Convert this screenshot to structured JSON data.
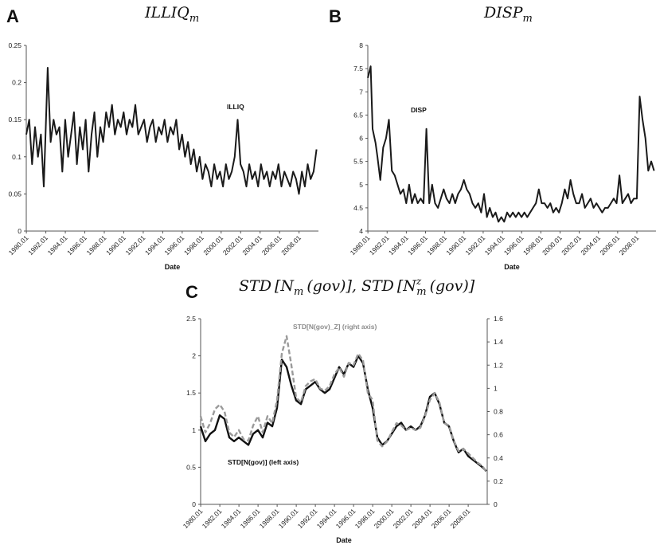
{
  "panels": {
    "a": {
      "letter": "A",
      "title_base": "ILLIQ",
      "title_sub": "m"
    },
    "b": {
      "letter": "B",
      "title_base": "DISP",
      "title_sub": "m"
    },
    "c": {
      "letter": "C",
      "title_part1": "STD",
      "title_bracket1_base": "N",
      "title_bracket1_sub": "m",
      "title_gov": "(gov)",
      "title_part2": "STD",
      "title_bracket2_base": "N",
      "title_bracket2_sub": "m",
      "title_bracket2_sup": "z"
    }
  },
  "chart_data": [
    {
      "id": "illiq",
      "type": "line",
      "xlabel": "Date",
      "ylabel": "",
      "ylim": [
        0,
        0.25
      ],
      "yticks": [
        "0",
        "0.05",
        "0.1",
        "0.15",
        "0.2",
        "0.25"
      ],
      "xrange": [
        1980.0,
        2010.0
      ],
      "xticks": [
        "1980.01",
        "1982.01",
        "1984.01",
        "1986.01",
        "1988.01",
        "1990.01",
        "1992.01",
        "1994.01",
        "1996.01",
        "1998.01",
        "2000.01",
        "2002.01",
        "2004.01",
        "2006.01",
        "2008.01"
      ],
      "grid": false,
      "annotations": [
        {
          "text": "ILLIQ"
        }
      ],
      "series": [
        {
          "name": "ILLIQ",
          "color": "#1a1a1a",
          "x": [
            1980.0,
            1980.3,
            1980.6,
            1980.9,
            1981.2,
            1981.5,
            1981.8,
            1982.0,
            1982.2,
            1982.5,
            1982.8,
            1983.1,
            1983.4,
            1983.7,
            1984.0,
            1984.3,
            1984.6,
            1984.9,
            1985.2,
            1985.5,
            1985.8,
            1986.1,
            1986.4,
            1986.7,
            1987.0,
            1987.3,
            1987.6,
            1987.9,
            1988.2,
            1988.5,
            1988.8,
            1989.1,
            1989.4,
            1989.7,
            1990.0,
            1990.3,
            1990.6,
            1990.9,
            1991.2,
            1991.5,
            1991.8,
            1992.1,
            1992.4,
            1992.7,
            1993.0,
            1993.3,
            1993.6,
            1993.9,
            1994.2,
            1994.5,
            1994.8,
            1995.1,
            1995.4,
            1995.7,
            1996.0,
            1996.3,
            1996.6,
            1996.9,
            1997.2,
            1997.5,
            1997.8,
            1998.1,
            1998.4,
            1998.7,
            1999.0,
            1999.3,
            1999.6,
            1999.9,
            2000.2,
            2000.5,
            2000.8,
            2001.1,
            2001.4,
            2001.7,
            2002.0,
            2002.3,
            2002.6,
            2002.9,
            2003.2,
            2003.5,
            2003.8,
            2004.1,
            2004.4,
            2004.7,
            2005.0,
            2005.3,
            2005.6,
            2005.9,
            2006.2,
            2006.5,
            2006.8,
            2007.1,
            2007.4,
            2007.7,
            2008.0,
            2008.3,
            2008.6,
            2008.9,
            2009.2,
            2009.5,
            2009.8
          ],
          "values": [
            0.13,
            0.15,
            0.09,
            0.14,
            0.1,
            0.13,
            0.06,
            0.14,
            0.22,
            0.12,
            0.15,
            0.13,
            0.14,
            0.08,
            0.15,
            0.1,
            0.13,
            0.16,
            0.09,
            0.14,
            0.11,
            0.15,
            0.08,
            0.13,
            0.16,
            0.1,
            0.14,
            0.12,
            0.16,
            0.14,
            0.17,
            0.13,
            0.15,
            0.14,
            0.16,
            0.13,
            0.15,
            0.14,
            0.17,
            0.13,
            0.14,
            0.15,
            0.12,
            0.14,
            0.15,
            0.12,
            0.14,
            0.13,
            0.15,
            0.12,
            0.14,
            0.13,
            0.15,
            0.11,
            0.13,
            0.1,
            0.12,
            0.09,
            0.11,
            0.08,
            0.1,
            0.07,
            0.09,
            0.08,
            0.06,
            0.09,
            0.07,
            0.08,
            0.06,
            0.09,
            0.07,
            0.08,
            0.1,
            0.15,
            0.09,
            0.08,
            0.06,
            0.09,
            0.07,
            0.08,
            0.06,
            0.09,
            0.07,
            0.08,
            0.06,
            0.08,
            0.07,
            0.09,
            0.06,
            0.08,
            0.07,
            0.06,
            0.08,
            0.07,
            0.05,
            0.08,
            0.06,
            0.09,
            0.07,
            0.08,
            0.11
          ]
        }
      ]
    },
    {
      "id": "disp",
      "type": "line",
      "xlabel": "Date",
      "ylabel": "",
      "ylim": [
        4,
        8
      ],
      "yticks": [
        "4",
        "4.5",
        "5",
        "5.5",
        "6",
        "6.5",
        "7",
        "7.5",
        "8"
      ],
      "xrange": [
        1980.0,
        2010.0
      ],
      "xticks": [
        "1980.01",
        "1982.01",
        "1984.01",
        "1986.01",
        "1988.01",
        "1990.01",
        "1992.01",
        "1994.01",
        "1996.01",
        "1998.01",
        "2000.01",
        "2002.01",
        "2004.01",
        "2006.01",
        "2008.01"
      ],
      "grid": false,
      "annotations": [
        {
          "text": "DISP"
        }
      ],
      "series": [
        {
          "name": "DISP",
          "color": "#1a1a1a",
          "x": [
            1980.0,
            1980.3,
            1980.5,
            1980.8,
            1981.0,
            1981.3,
            1981.6,
            1981.9,
            1982.2,
            1982.5,
            1982.8,
            1983.1,
            1983.4,
            1983.7,
            1984.0,
            1984.3,
            1984.6,
            1984.9,
            1985.2,
            1985.5,
            1985.8,
            1986.1,
            1986.4,
            1986.7,
            1987.0,
            1987.3,
            1987.6,
            1987.9,
            1988.2,
            1988.5,
            1988.8,
            1989.1,
            1989.4,
            1989.7,
            1990.0,
            1990.3,
            1990.6,
            1990.9,
            1991.2,
            1991.5,
            1991.8,
            1992.1,
            1992.4,
            1992.7,
            1993.0,
            1993.3,
            1993.6,
            1993.9,
            1994.2,
            1994.5,
            1994.8,
            1995.1,
            1995.4,
            1995.7,
            1996.0,
            1996.3,
            1996.6,
            1996.9,
            1997.2,
            1997.5,
            1997.8,
            1998.1,
            1998.4,
            1998.7,
            1999.0,
            1999.3,
            1999.6,
            1999.9,
            2000.2,
            2000.5,
            2000.8,
            2001.1,
            2001.4,
            2001.7,
            2002.0,
            2002.3,
            2002.6,
            2002.9,
            2003.2,
            2003.5,
            2003.8,
            2004.1,
            2004.4,
            2004.7,
            2005.0,
            2005.3,
            2005.6,
            2005.9,
            2006.2,
            2006.5,
            2006.8,
            2007.1,
            2007.4,
            2007.7,
            2008.0,
            2008.3,
            2008.6,
            2008.9,
            2009.2,
            2009.5,
            2009.8
          ],
          "values": [
            7.3,
            7.55,
            6.2,
            5.9,
            5.6,
            5.1,
            5.8,
            6.0,
            6.4,
            5.3,
            5.2,
            5.0,
            4.8,
            4.9,
            4.6,
            5.0,
            4.6,
            4.8,
            4.6,
            4.7,
            4.6,
            6.2,
            4.6,
            5.0,
            4.6,
            4.5,
            4.7,
            4.9,
            4.7,
            4.6,
            4.8,
            4.6,
            4.8,
            4.9,
            5.1,
            4.9,
            4.8,
            4.6,
            4.5,
            4.6,
            4.4,
            4.8,
            4.3,
            4.5,
            4.3,
            4.4,
            4.2,
            4.3,
            4.2,
            4.4,
            4.3,
            4.4,
            4.3,
            4.4,
            4.3,
            4.4,
            4.3,
            4.4,
            4.5,
            4.6,
            4.9,
            4.6,
            4.6,
            4.5,
            4.6,
            4.4,
            4.5,
            4.4,
            4.6,
            4.9,
            4.7,
            5.1,
            4.8,
            4.6,
            4.6,
            4.8,
            4.5,
            4.6,
            4.7,
            4.5,
            4.6,
            4.5,
            4.4,
            4.5,
            4.5,
            4.6,
            4.7,
            4.6,
            5.2,
            4.6,
            4.7,
            4.8,
            4.6,
            4.7,
            4.7,
            6.9,
            6.4,
            6.0,
            5.3,
            5.5,
            5.3
          ]
        }
      ]
    },
    {
      "id": "std",
      "type": "line",
      "xlabel": "Date",
      "ylabel": "",
      "ylim": [
        0,
        2.5
      ],
      "ylim_right": [
        0,
        1.6
      ],
      "yticks": [
        "0",
        "0.5",
        "1",
        "1.5",
        "2",
        "2.5"
      ],
      "yticks_right": [
        "0",
        "0.2",
        "0.4",
        "0.6",
        "0.8",
        "1",
        "1.2",
        "1.4",
        "1.6"
      ],
      "xrange": [
        1980.0,
        2010.0
      ],
      "xticks": [
        "1980.01",
        "1982.01",
        "1984.01",
        "1986.01",
        "1988.01",
        "1990.01",
        "1992.01",
        "1994.01",
        "1996.01",
        "1998.01",
        "2000.01",
        "2002.01",
        "2004.01",
        "2006.01",
        "2008.01"
      ],
      "grid": false,
      "annotations": [
        {
          "text": "STD[N(gov)_Z] (right axis)"
        },
        {
          "text": "STD[N(gov)] (left axis)"
        }
      ],
      "series": [
        {
          "name": "STD[N(gov)] (left axis)",
          "axis": "left",
          "color": "#111111",
          "x": [
            1980.0,
            1980.5,
            1981.0,
            1981.5,
            1982.0,
            1982.5,
            1983.0,
            1983.5,
            1984.0,
            1984.5,
            1985.0,
            1985.5,
            1986.0,
            1986.5,
            1987.0,
            1987.5,
            1988.0,
            1988.5,
            1989.0,
            1989.5,
            1990.0,
            1990.5,
            1991.0,
            1991.5,
            1992.0,
            1992.5,
            1993.0,
            1993.5,
            1994.0,
            1994.5,
            1995.0,
            1995.5,
            1996.0,
            1996.5,
            1997.0,
            1997.5,
            1998.0,
            1998.5,
            1999.0,
            1999.5,
            2000.0,
            2000.5,
            2001.0,
            2001.5,
            2002.0,
            2002.5,
            2003.0,
            2003.5,
            2004.0,
            2004.5,
            2005.0,
            2005.5,
            2006.0,
            2006.5,
            2007.0,
            2007.5,
            2008.0,
            2008.5,
            2009.0,
            2009.5,
            2009.9
          ],
          "values": [
            1.05,
            0.85,
            0.95,
            1.0,
            1.2,
            1.15,
            0.9,
            0.85,
            0.9,
            0.85,
            0.8,
            0.95,
            1.0,
            0.9,
            1.1,
            1.05,
            1.3,
            1.95,
            1.85,
            1.6,
            1.4,
            1.35,
            1.55,
            1.6,
            1.65,
            1.55,
            1.5,
            1.55,
            1.7,
            1.85,
            1.75,
            1.9,
            1.85,
            2.0,
            1.9,
            1.55,
            1.3,
            0.9,
            0.8,
            0.85,
            0.95,
            1.05,
            1.1,
            1.0,
            1.05,
            1.0,
            1.05,
            1.2,
            1.45,
            1.5,
            1.35,
            1.1,
            1.05,
            0.85,
            0.7,
            0.75,
            0.65,
            0.6,
            0.55,
            0.5,
            0.45
          ]
        },
        {
          "name": "STD[N(gov)_Z] (right axis)",
          "axis": "right",
          "color": "#9a9a9a",
          "x": [
            1980.0,
            1980.5,
            1981.0,
            1981.5,
            1982.0,
            1982.5,
            1983.0,
            1983.5,
            1984.0,
            1984.5,
            1985.0,
            1985.5,
            1986.0,
            1986.5,
            1987.0,
            1987.5,
            1988.0,
            1988.5,
            1989.0,
            1989.5,
            1990.0,
            1990.5,
            1991.0,
            1991.5,
            1992.0,
            1992.5,
            1993.0,
            1993.5,
            1994.0,
            1994.5,
            1995.0,
            1995.5,
            1996.0,
            1996.5,
            1997.0,
            1997.5,
            1998.0,
            1998.5,
            1999.0,
            1999.5,
            2000.0,
            2000.5,
            2001.0,
            2001.5,
            2002.0,
            2002.5,
            2003.0,
            2003.5,
            2004.0,
            2004.5,
            2005.0,
            2005.5,
            2006.0,
            2006.5,
            2007.0,
            2007.5,
            2008.0,
            2008.5,
            2009.0,
            2009.5,
            2009.9
          ],
          "values": [
            0.76,
            0.62,
            0.7,
            0.82,
            0.86,
            0.8,
            0.62,
            0.58,
            0.64,
            0.56,
            0.55,
            0.68,
            0.76,
            0.62,
            0.76,
            0.7,
            0.9,
            1.3,
            1.45,
            1.2,
            0.92,
            0.88,
            1.02,
            1.06,
            1.08,
            1.0,
            0.98,
            1.02,
            1.12,
            1.18,
            1.1,
            1.22,
            1.2,
            1.3,
            1.24,
            0.96,
            0.9,
            0.55,
            0.5,
            0.54,
            0.62,
            0.7,
            0.68,
            0.64,
            0.66,
            0.64,
            0.66,
            0.76,
            0.9,
            0.96,
            0.88,
            0.7,
            0.68,
            0.55,
            0.46,
            0.48,
            0.44,
            0.4,
            0.36,
            0.33,
            0.28
          ]
        }
      ]
    }
  ]
}
